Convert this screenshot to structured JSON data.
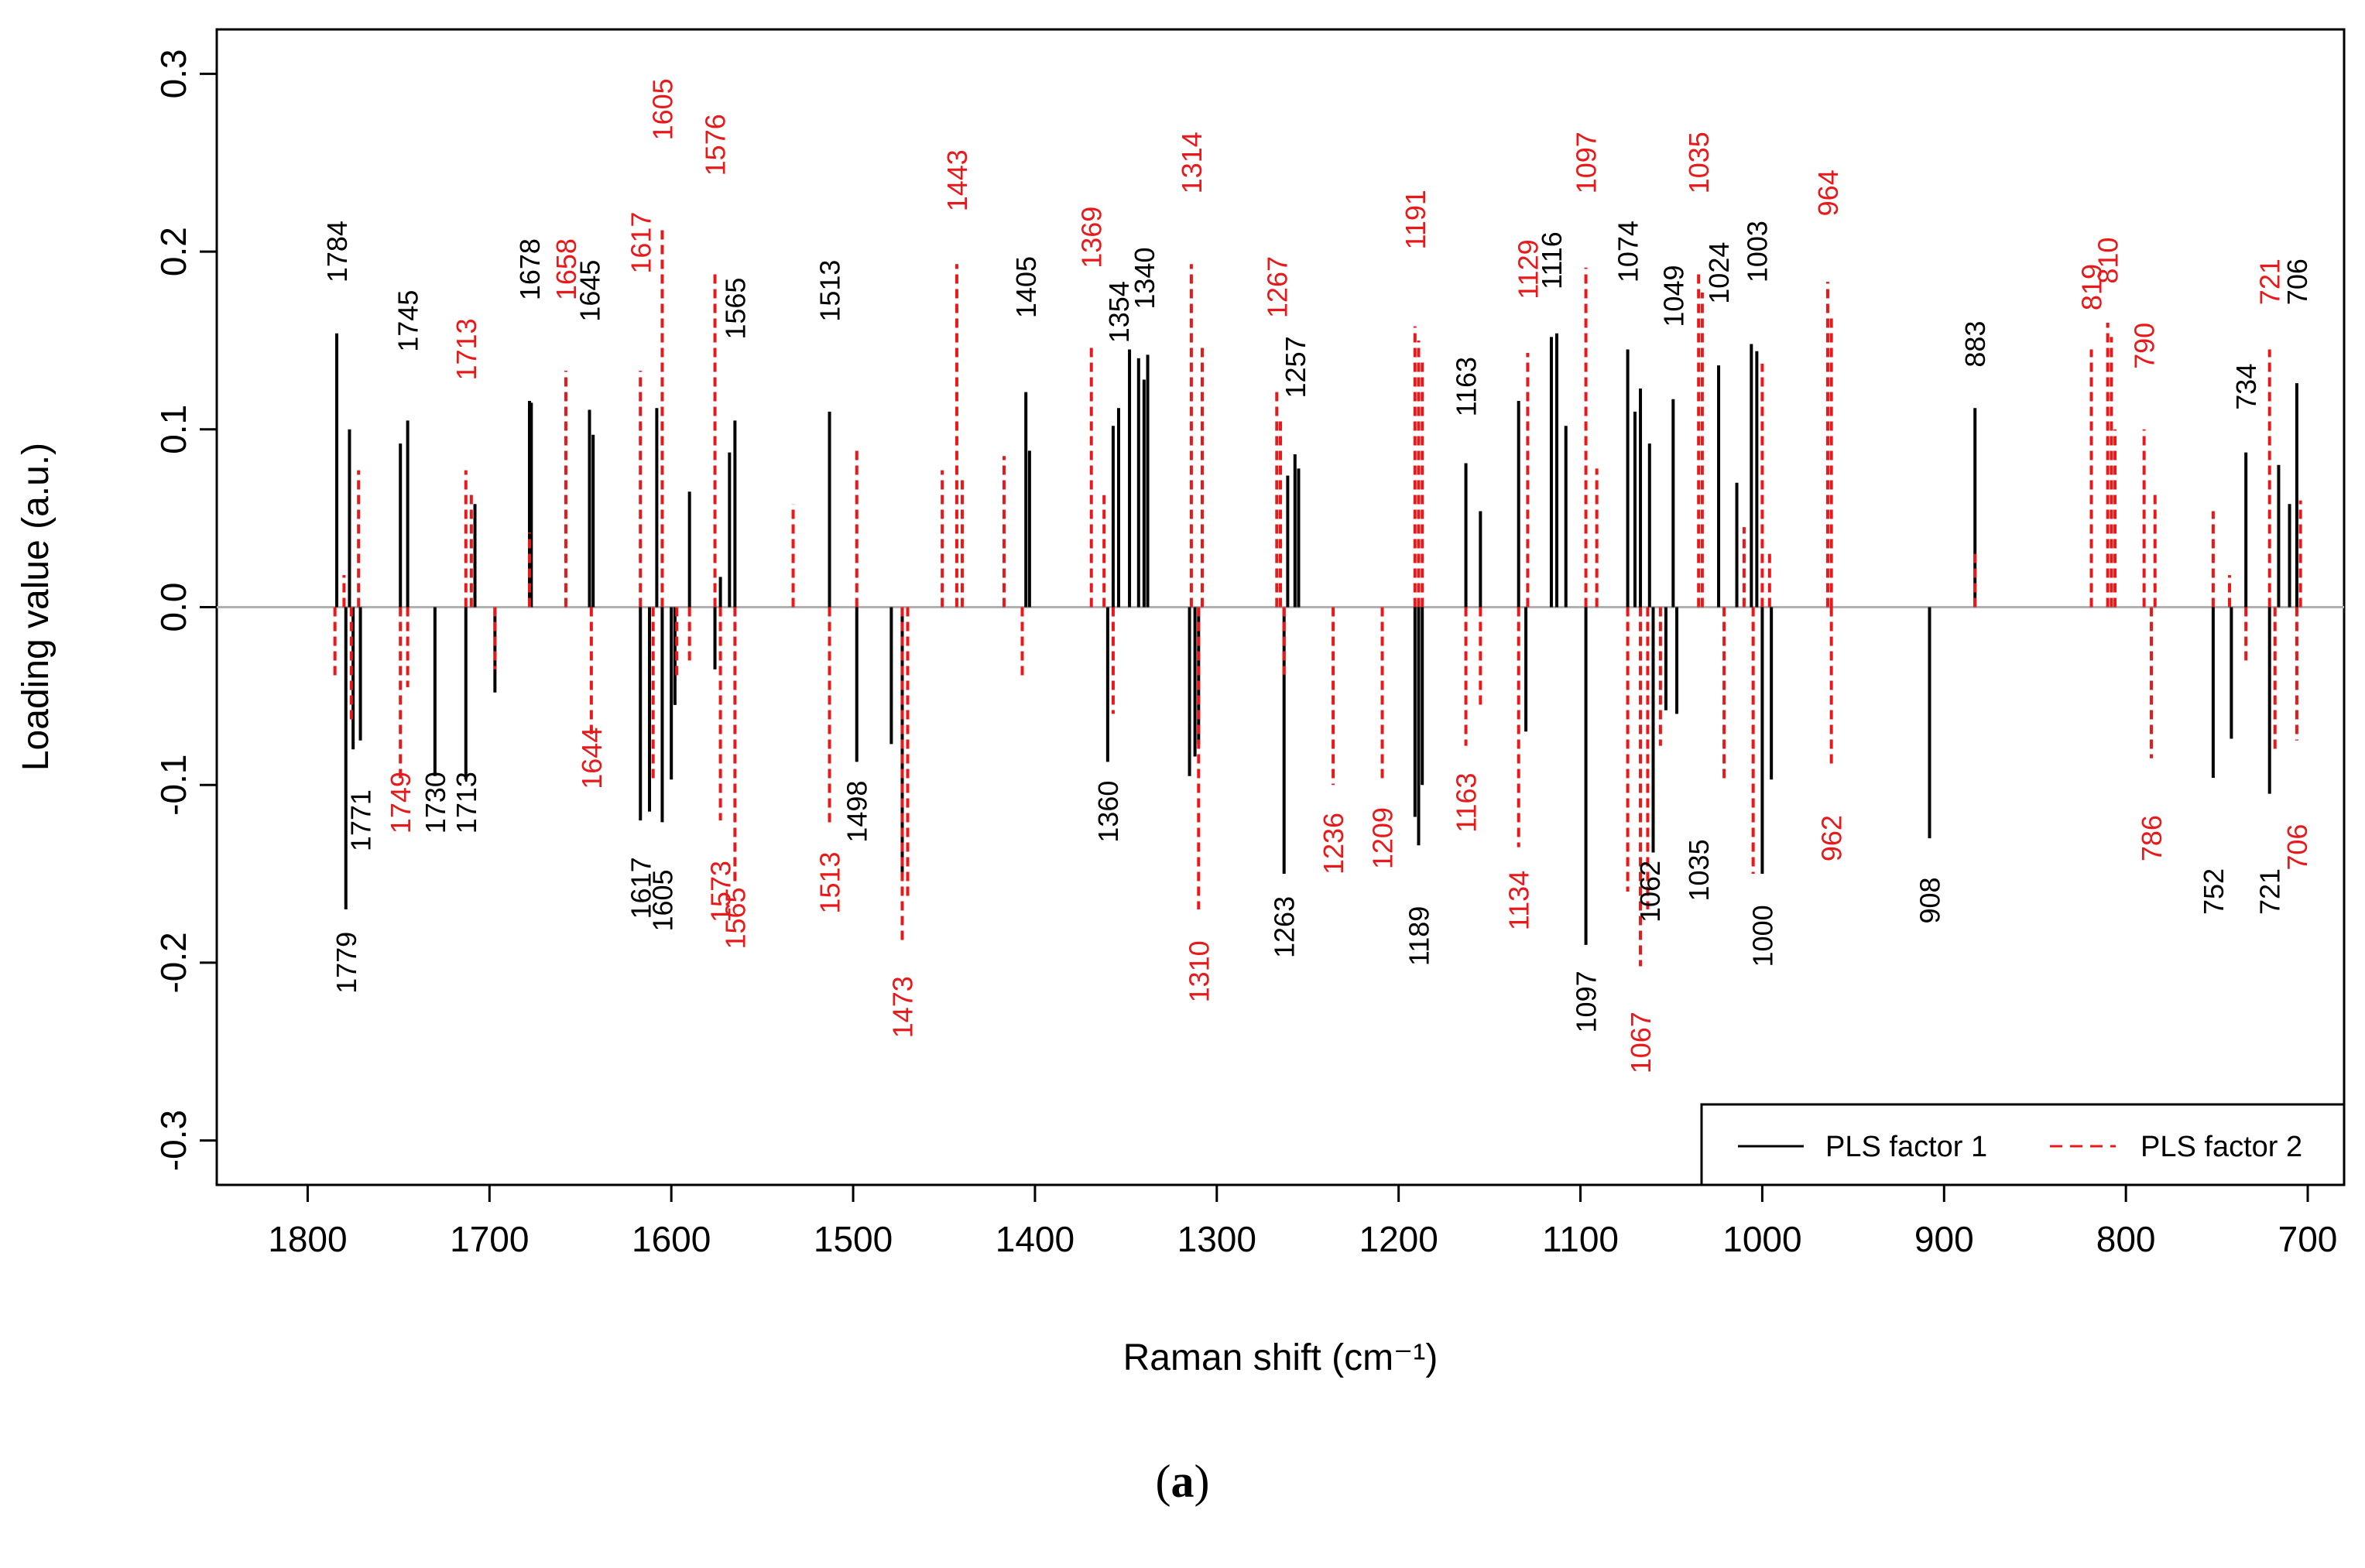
{
  "chart_data": {
    "type": "bar",
    "title": "",
    "xlabel": "Raman shift (cm⁻¹)",
    "ylabel": "Loading value (a.u.)",
    "xlim": [
      1850,
      680
    ],
    "ylim": [
      -0.325,
      0.325
    ],
    "xticks": [
      1800,
      1700,
      1600,
      1500,
      1400,
      1300,
      1200,
      1100,
      1000,
      900,
      800,
      700
    ],
    "yticks": [
      -0.3,
      -0.2,
      -0.1,
      0.0,
      0.1,
      0.2,
      0.3
    ],
    "ytick_labels": [
      "-0.3",
      "-0.2",
      "-0.1",
      "0.0",
      "0.1",
      "0.2",
      "0.3"
    ],
    "legend": {
      "position": "bottom-right",
      "entries": [
        "PLS factor 1",
        "PLS factor 2"
      ]
    },
    "colors": {
      "factor1": "#000000",
      "factor2": "#e8191a",
      "zero_line": "#b0b0b0"
    },
    "series": [
      {
        "name": "PLS factor 1",
        "style": "solid",
        "x": [
          1784,
          1779,
          1777,
          1775,
          1771,
          1749,
          1745,
          1730,
          1713,
          1708,
          1697,
          1678,
          1677,
          1645,
          1643,
          1617,
          1612,
          1608,
          1605,
          1600,
          1598,
          1590,
          1576,
          1573,
          1568,
          1565,
          1513,
          1498,
          1479,
          1473,
          1405,
          1403,
          1360,
          1357,
          1354,
          1348,
          1343,
          1340,
          1338,
          1315,
          1312,
          1310,
          1263,
          1261,
          1257,
          1255,
          1191,
          1189,
          1187,
          1163,
          1155,
          1134,
          1130,
          1116,
          1113,
          1108,
          1097,
          1074,
          1070,
          1067,
          1062,
          1060,
          1053,
          1049,
          1047,
          1024,
          1014,
          1006,
          1003,
          1000,
          995,
          908,
          883,
          752,
          742,
          734,
          721,
          716,
          710,
          706
        ],
        "values": [
          0.154,
          -0.17,
          0.1,
          -0.08,
          -0.075,
          0.092,
          0.105,
          -0.095,
          -0.097,
          0.058,
          -0.048,
          0.116,
          0.115,
          0.111,
          0.097,
          -0.12,
          -0.115,
          0.112,
          -0.121,
          -0.097,
          -0.055,
          0.065,
          -0.035,
          0.017,
          0.087,
          0.105,
          0.11,
          -0.087,
          -0.077,
          -0.15,
          0.121,
          0.088,
          -0.087,
          0.102,
          0.112,
          0.145,
          0.14,
          0.128,
          0.142,
          -0.095,
          -0.084,
          -0.077,
          -0.15,
          0.074,
          0.086,
          0.078,
          -0.118,
          -0.134,
          -0.1,
          0.081,
          0.054,
          0.116,
          -0.07,
          0.152,
          0.154,
          0.102,
          -0.19,
          0.145,
          0.11,
          0.123,
          0.092,
          -0.138,
          -0.058,
          0.117,
          -0.06,
          0.136,
          0.07,
          0.148,
          0.144,
          -0.15,
          -0.097,
          -0.13,
          0.112,
          -0.096,
          -0.074,
          0.087,
          -0.105,
          0.08,
          0.058,
          0.126
        ]
      },
      {
        "name": "PLS factor 2",
        "style": "dashed",
        "x": [
          1785,
          1780,
          1776,
          1772,
          1749,
          1745,
          1713,
          1710,
          1697,
          1678,
          1658,
          1644,
          1617,
          1610,
          1605,
          1597,
          1590,
          1576,
          1573,
          1565,
          1533,
          1513,
          1498,
          1473,
          1470,
          1451,
          1443,
          1440,
          1417,
          1407,
          1369,
          1362,
          1357,
          1314,
          1310,
          1308,
          1267,
          1265,
          1263,
          1236,
          1209,
          1191,
          1189,
          1187,
          1163,
          1155,
          1134,
          1129,
          1097,
          1091,
          1074,
          1067,
          1063,
          1056,
          1035,
          1033,
          1021,
          1010,
          1005,
          1000,
          996,
          964,
          962,
          962,
          883,
          819,
          810,
          808,
          806,
          790,
          786,
          784,
          752,
          743,
          734,
          721,
          718,
          706,
          704
        ],
        "values": [
          -0.04,
          0.018,
          -0.065,
          0.077,
          -0.1,
          -0.045,
          0.077,
          0.065,
          -0.035,
          0.042,
          0.133,
          -0.072,
          0.133,
          -0.097,
          0.212,
          -0.04,
          -0.03,
          0.188,
          -0.12,
          -0.157,
          0.058,
          -0.123,
          0.088,
          -0.19,
          -0.165,
          0.077,
          0.193,
          0.073,
          0.085,
          -0.04,
          0.147,
          0.063,
          -0.06,
          0.193,
          -0.17,
          0.146,
          0.123,
          0.105,
          -0.038,
          -0.1,
          -0.097,
          0.158,
          0.15,
          0.14,
          -0.078,
          -0.055,
          -0.135,
          0.143,
          0.191,
          0.078,
          -0.16,
          -0.202,
          -0.17,
          -0.078,
          0.19,
          0.177,
          -0.097,
          0.045,
          -0.15,
          0.137,
          0.03,
          0.183,
          -0.09,
          0.165,
          0.03,
          0.145,
          0.16,
          0.152,
          0.1,
          0.1,
          -0.085,
          0.065,
          0.054,
          0.018,
          -0.03,
          0.145,
          -0.082,
          -0.075,
          0.06
        ]
      }
    ],
    "annotations": [
      {
        "text": "1784",
        "series": 1,
        "x": 1784,
        "y": 0.2
      },
      {
        "text": "1771",
        "series": 1,
        "x": 1771,
        "y": -0.12
      },
      {
        "text": "1779",
        "series": 1,
        "x": 1779,
        "y": -0.2
      },
      {
        "text": "1749",
        "series": 2,
        "x": 1749,
        "y": -0.11
      },
      {
        "text": "1745",
        "series": 1,
        "x": 1745,
        "y": 0.161
      },
      {
        "text": "1730",
        "series": 1,
        "x": 1730,
        "y": -0.11
      },
      {
        "text": "1713",
        "series": 2,
        "x": 1713,
        "y": 0.145
      },
      {
        "text": "1713",
        "series": 1,
        "x": 1713,
        "y": -0.11
      },
      {
        "text": "1678",
        "series": 1,
        "x": 1678,
        "y": 0.19
      },
      {
        "text": "1658",
        "series": 2,
        "x": 1658,
        "y": 0.19
      },
      {
        "text": "1645",
        "series": 1,
        "x": 1645,
        "y": 0.178
      },
      {
        "text": "1644",
        "series": 2,
        "x": 1644,
        "y": -0.085
      },
      {
        "text": "1617",
        "series": 2,
        "x": 1617,
        "y": 0.205
      },
      {
        "text": "1617",
        "series": 1,
        "x": 1617,
        "y": -0.158
      },
      {
        "text": "1605",
        "series": 2,
        "x": 1605,
        "y": 0.28
      },
      {
        "text": "1605",
        "series": 1,
        "x": 1605,
        "y": -0.165
      },
      {
        "text": "1576",
        "series": 2,
        "x": 1576,
        "y": 0.26
      },
      {
        "text": "1573",
        "series": 2,
        "x": 1573,
        "y": -0.16
      },
      {
        "text": "1565",
        "series": 1,
        "x": 1565,
        "y": 0.168
      },
      {
        "text": "1565",
        "series": 2,
        "x": 1565,
        "y": -0.175
      },
      {
        "text": "1513",
        "series": 1,
        "x": 1513,
        "y": 0.178
      },
      {
        "text": "1513",
        "series": 2,
        "x": 1513,
        "y": -0.155
      },
      {
        "text": "1498",
        "series": 1,
        "x": 1498,
        "y": -0.115
      },
      {
        "text": "1473",
        "series": 2,
        "x": 1473,
        "y": -0.225
      },
      {
        "text": "1443",
        "series": 2,
        "x": 1443,
        "y": 0.24
      },
      {
        "text": "1405",
        "series": 1,
        "x": 1405,
        "y": 0.18
      },
      {
        "text": "1369",
        "series": 2,
        "x": 1369,
        "y": 0.208
      },
      {
        "text": "1360",
        "series": 1,
        "x": 1360,
        "y": -0.115
      },
      {
        "text": "1354",
        "series": 1,
        "x": 1354,
        "y": 0.166
      },
      {
        "text": "1340",
        "series": 1,
        "x": 1340,
        "y": 0.185
      },
      {
        "text": "1314",
        "series": 2,
        "x": 1314,
        "y": 0.25
      },
      {
        "text": "1310",
        "series": 2,
        "x": 1310,
        "y": -0.205
      },
      {
        "text": "1267",
        "series": 2,
        "x": 1267,
        "y": 0.18
      },
      {
        "text": "1263",
        "series": 1,
        "x": 1263,
        "y": -0.18
      },
      {
        "text": "1257",
        "series": 1,
        "x": 1257,
        "y": 0.135
      },
      {
        "text": "1236",
        "series": 2,
        "x": 1236,
        "y": -0.133
      },
      {
        "text": "1209",
        "series": 2,
        "x": 1209,
        "y": -0.13
      },
      {
        "text": "1191",
        "series": 2,
        "x": 1191,
        "y": 0.218
      },
      {
        "text": "1189",
        "series": 1,
        "x": 1189,
        "y": -0.185
      },
      {
        "text": "1163",
        "series": 1,
        "x": 1163,
        "y": 0.124
      },
      {
        "text": "1163",
        "series": 2,
        "x": 1163,
        "y": -0.11
      },
      {
        "text": "1134",
        "series": 2,
        "x": 1134,
        "y": -0.165
      },
      {
        "text": "1129",
        "series": 2,
        "x": 1129,
        "y": 0.19
      },
      {
        "text": "1116",
        "series": 1,
        "x": 1116,
        "y": 0.195
      },
      {
        "text": "1097",
        "series": 2,
        "x": 1097,
        "y": 0.25
      },
      {
        "text": "1097",
        "series": 1,
        "x": 1097,
        "y": -0.222
      },
      {
        "text": "1074",
        "series": 1,
        "x": 1074,
        "y": 0.2
      },
      {
        "text": "1067",
        "series": 2,
        "x": 1067,
        "y": -0.245
      },
      {
        "text": "1062",
        "series": 1,
        "x": 1062,
        "y": -0.16
      },
      {
        "text": "1049",
        "series": 1,
        "x": 1049,
        "y": 0.175
      },
      {
        "text": "1035",
        "series": 2,
        "x": 1035,
        "y": 0.25
      },
      {
        "text": "1035",
        "series": 1,
        "x": 1035,
        "y": -0.148
      },
      {
        "text": "1024",
        "series": 1,
        "x": 1024,
        "y": 0.188
      },
      {
        "text": "1003",
        "series": 1,
        "x": 1003,
        "y": 0.2
      },
      {
        "text": "1000",
        "series": 1,
        "x": 1000,
        "y": -0.185
      },
      {
        "text": "964",
        "series": 2,
        "x": 964,
        "y": 0.233
      },
      {
        "text": "962",
        "series": 2,
        "x": 962,
        "y": -0.13
      },
      {
        "text": "908",
        "series": 1,
        "x": 908,
        "y": -0.165
      },
      {
        "text": "883",
        "series": 1,
        "x": 883,
        "y": 0.148
      },
      {
        "text": "819",
        "series": 2,
        "x": 819,
        "y": 0.18
      },
      {
        "text": "810",
        "series": 2,
        "x": 810,
        "y": 0.195
      },
      {
        "text": "790",
        "series": 2,
        "x": 790,
        "y": 0.147
      },
      {
        "text": "786",
        "series": 2,
        "x": 786,
        "y": -0.13
      },
      {
        "text": "752",
        "series": 1,
        "x": 752,
        "y": -0.16
      },
      {
        "text": "734",
        "series": 1,
        "x": 734,
        "y": 0.124
      },
      {
        "text": "721",
        "series": 2,
        "x": 721,
        "y": 0.183
      },
      {
        "text": "721",
        "series": 1,
        "x": 721,
        "y": -0.16
      },
      {
        "text": "706",
        "series": 1,
        "x": 706,
        "y": 0.183
      },
      {
        "text": "706",
        "series": 2,
        "x": 706,
        "y": -0.135
      }
    ]
  },
  "caption": {
    "open": "(",
    "letter": "a",
    "close": ")"
  }
}
